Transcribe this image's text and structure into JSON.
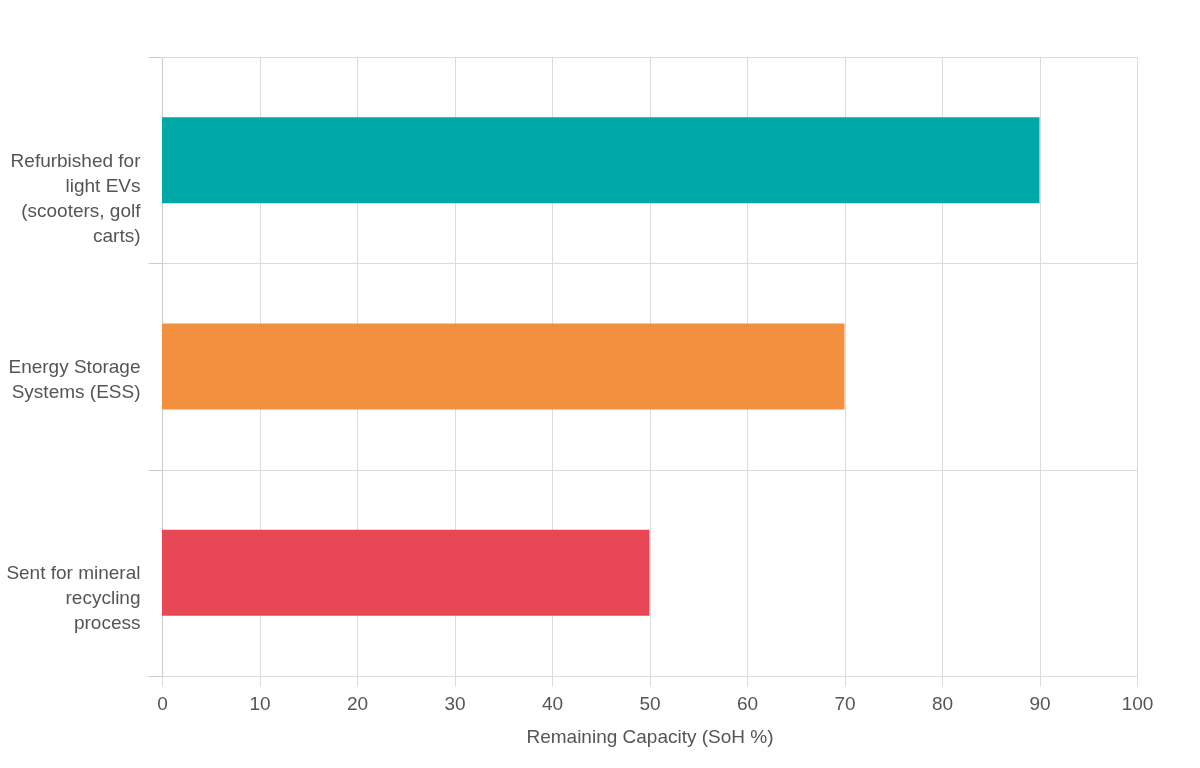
{
  "chart_data": {
    "type": "bar",
    "orientation": "horizontal",
    "categories": [
      "Refurbished for light EVs (scooters, golf carts)",
      "Energy Storage Systems (ESS)",
      "Sent for mineral recycling process"
    ],
    "values": [
      90,
      70,
      50
    ],
    "colors": [
      "#00a8a8",
      "#f29040",
      "#e84855"
    ],
    "xlabel": "Remaining Capacity (SoH %)",
    "xlim": [
      0,
      100
    ],
    "xticks": [
      0,
      10,
      20,
      30,
      40,
      50,
      60,
      70,
      80,
      90,
      100
    ],
    "grid": true
  }
}
